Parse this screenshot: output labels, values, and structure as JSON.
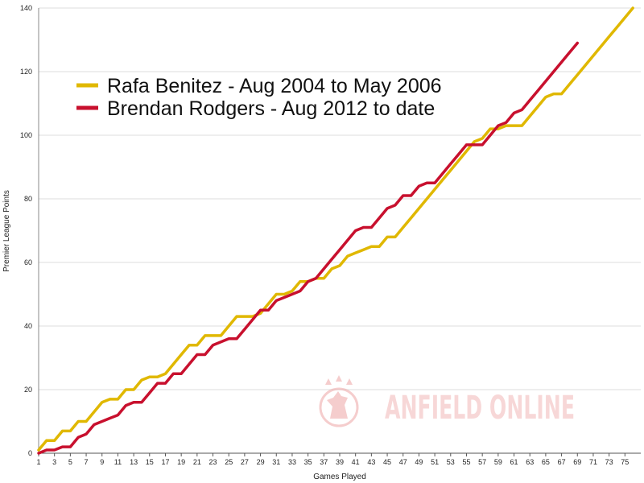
{
  "chart_data": {
    "type": "line",
    "title": "",
    "xlabel": "Games Played",
    "ylabel": "Premier League Points",
    "xlim": [
      1,
      77
    ],
    "ylim": [
      0,
      140
    ],
    "x_ticks": [
      1,
      3,
      5,
      7,
      9,
      11,
      13,
      15,
      17,
      19,
      21,
      23,
      25,
      27,
      29,
      31,
      33,
      35,
      37,
      39,
      41,
      43,
      45,
      47,
      49,
      51,
      53,
      55,
      57,
      59,
      61,
      63,
      65,
      67,
      69,
      71,
      73,
      75
    ],
    "y_ticks": [
      0,
      20,
      40,
      60,
      80,
      100,
      120,
      140
    ],
    "grid": {
      "horizontal": true,
      "vertical": false
    },
    "legend_position": "top-left",
    "series": [
      {
        "name": "Rafa Benitez -  Aug 2004 to May 2006",
        "color": "#E0B800",
        "points": [
          [
            1,
            1
          ],
          [
            2,
            4
          ],
          [
            3,
            4
          ],
          [
            4,
            7
          ],
          [
            5,
            7
          ],
          [
            6,
            10
          ],
          [
            7,
            10
          ],
          [
            8,
            13
          ],
          [
            9,
            16
          ],
          [
            10,
            17
          ],
          [
            11,
            17
          ],
          [
            12,
            20
          ],
          [
            13,
            20
          ],
          [
            14,
            23
          ],
          [
            15,
            24
          ],
          [
            16,
            24
          ],
          [
            17,
            25
          ],
          [
            18,
            28
          ],
          [
            19,
            31
          ],
          [
            20,
            34
          ],
          [
            21,
            34
          ],
          [
            22,
            37
          ],
          [
            23,
            37
          ],
          [
            24,
            37
          ],
          [
            25,
            40
          ],
          [
            26,
            43
          ],
          [
            27,
            43
          ],
          [
            28,
            43
          ],
          [
            29,
            44
          ],
          [
            30,
            47
          ],
          [
            31,
            50
          ],
          [
            32,
            50
          ],
          [
            33,
            51
          ],
          [
            34,
            54
          ],
          [
            35,
            54
          ],
          [
            36,
            55
          ],
          [
            37,
            55
          ],
          [
            38,
            58
          ],
          [
            39,
            59
          ],
          [
            40,
            62
          ],
          [
            41,
            63
          ],
          [
            42,
            64
          ],
          [
            43,
            65
          ],
          [
            44,
            65
          ],
          [
            45,
            68
          ],
          [
            46,
            68
          ],
          [
            47,
            71
          ],
          [
            48,
            74
          ],
          [
            49,
            77
          ],
          [
            50,
            80
          ],
          [
            51,
            83
          ],
          [
            52,
            86
          ],
          [
            53,
            89
          ],
          [
            54,
            92
          ],
          [
            55,
            95
          ],
          [
            56,
            98
          ],
          [
            57,
            99
          ],
          [
            58,
            102
          ],
          [
            59,
            102
          ],
          [
            60,
            103
          ],
          [
            61,
            103
          ],
          [
            62,
            103
          ],
          [
            63,
            106
          ],
          [
            64,
            109
          ],
          [
            65,
            112
          ],
          [
            66,
            113
          ],
          [
            67,
            113
          ],
          [
            68,
            116
          ],
          [
            69,
            119
          ],
          [
            70,
            122
          ],
          [
            71,
            125
          ],
          [
            72,
            128
          ],
          [
            73,
            131
          ],
          [
            74,
            134
          ],
          [
            75,
            137
          ],
          [
            76,
            140
          ]
        ]
      },
      {
        "name": "Brendan Rodgers - Aug 2012 to date",
        "color": "#C8102E",
        "points": [
          [
            1,
            0
          ],
          [
            2,
            1
          ],
          [
            3,
            1
          ],
          [
            4,
            2
          ],
          [
            5,
            2
          ],
          [
            6,
            5
          ],
          [
            7,
            6
          ],
          [
            8,
            9
          ],
          [
            9,
            10
          ],
          [
            10,
            11
          ],
          [
            11,
            12
          ],
          [
            12,
            15
          ],
          [
            13,
            16
          ],
          [
            14,
            16
          ],
          [
            15,
            19
          ],
          [
            16,
            22
          ],
          [
            17,
            22
          ],
          [
            18,
            25
          ],
          [
            19,
            25
          ],
          [
            20,
            28
          ],
          [
            21,
            31
          ],
          [
            22,
            31
          ],
          [
            23,
            34
          ],
          [
            24,
            35
          ],
          [
            25,
            36
          ],
          [
            26,
            36
          ],
          [
            27,
            39
          ],
          [
            28,
            42
          ],
          [
            29,
            45
          ],
          [
            30,
            45
          ],
          [
            31,
            48
          ],
          [
            32,
            49
          ],
          [
            33,
            50
          ],
          [
            34,
            51
          ],
          [
            35,
            54
          ],
          [
            36,
            55
          ],
          [
            37,
            58
          ],
          [
            38,
            61
          ],
          [
            39,
            64
          ],
          [
            40,
            67
          ],
          [
            41,
            70
          ],
          [
            42,
            71
          ],
          [
            43,
            71
          ],
          [
            44,
            74
          ],
          [
            45,
            77
          ],
          [
            46,
            78
          ],
          [
            47,
            81
          ],
          [
            48,
            81
          ],
          [
            49,
            84
          ],
          [
            50,
            85
          ],
          [
            51,
            85
          ],
          [
            52,
            88
          ],
          [
            53,
            91
          ],
          [
            54,
            94
          ],
          [
            55,
            97
          ],
          [
            56,
            97
          ],
          [
            57,
            97
          ],
          [
            58,
            100
          ],
          [
            59,
            103
          ],
          [
            60,
            104
          ],
          [
            61,
            107
          ],
          [
            62,
            108
          ],
          [
            63,
            111
          ],
          [
            64,
            114
          ],
          [
            65,
            117
          ],
          [
            66,
            120
          ],
          [
            67,
            123
          ],
          [
            68,
            126
          ],
          [
            69,
            129
          ]
        ]
      }
    ]
  },
  "watermark": {
    "text": "ANFIELD ONLINE",
    "color": "#F2B8B8"
  }
}
